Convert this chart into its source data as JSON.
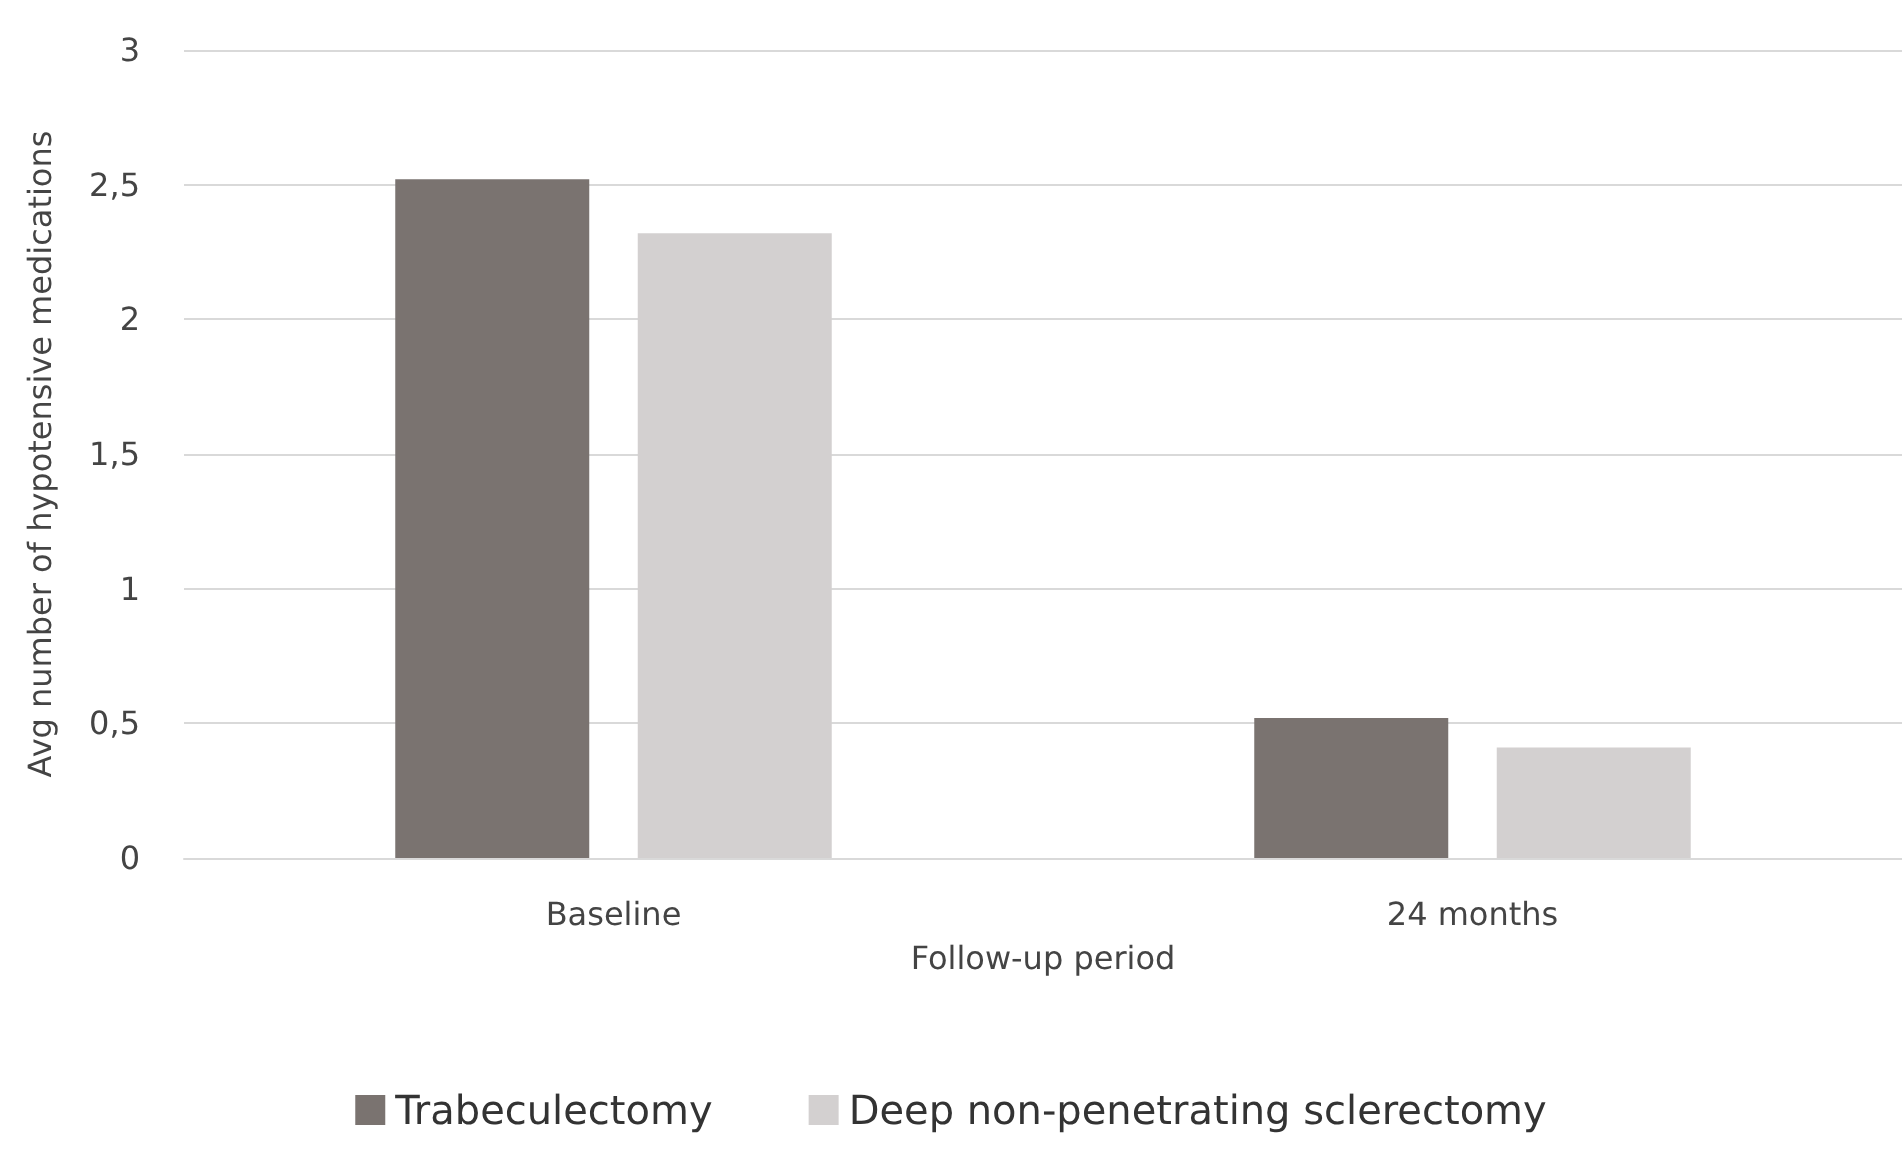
{
  "chart_data": {
    "type": "bar",
    "xlabel": "Follow-up period",
    "ylabel": "Avg number of hypotensive medications",
    "categories": [
      "Baseline",
      "24 months"
    ],
    "series": [
      {
        "name": "Trabeculectomy",
        "color": "#7a7370",
        "values": [
          2.52,
          0.52
        ]
      },
      {
        "name": "Deep non-penetrating sclerectomy",
        "color": "#d3d0d0",
        "values": [
          2.32,
          0.41
        ]
      }
    ],
    "ylim": [
      0,
      3
    ],
    "yticks": [
      0,
      {
        "value": 0.5,
        "label": "0,5"
      },
      1,
      {
        "value": 1.5,
        "label": "1,5"
      },
      2,
      {
        "value": 2.5,
        "label": "2,5"
      },
      3
    ],
    "grid": "y",
    "legend": "bottom"
  }
}
